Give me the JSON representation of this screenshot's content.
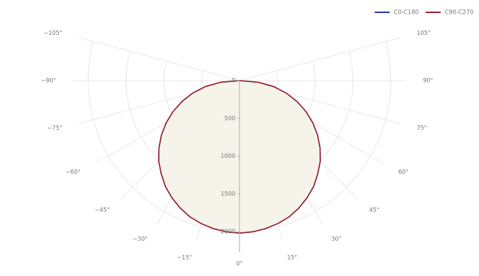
{
  "chart_data": {
    "type": "polar",
    "x": [
      -90,
      -85,
      -80,
      -75,
      -70,
      -65,
      -60,
      -55,
      -50,
      -45,
      -40,
      -35,
      -30,
      -25,
      -20,
      -15,
      -10,
      -5,
      0,
      5,
      10,
      15,
      20,
      25,
      30,
      35,
      40,
      45,
      50,
      55,
      60,
      65,
      70,
      75,
      80,
      85,
      90
    ],
    "series": [
      {
        "name": "C0-C180",
        "color": "#1f2f9e",
        "values": [
          0,
          250,
          460,
          640,
          810,
          970,
          1120,
          1260,
          1390,
          1510,
          1610,
          1710,
          1790,
          1860,
          1920,
          1960,
          1990,
          2010,
          2020,
          2010,
          1990,
          1960,
          1920,
          1860,
          1790,
          1710,
          1610,
          1510,
          1390,
          1260,
          1120,
          970,
          810,
          640,
          460,
          250,
          0
        ]
      },
      {
        "name": "C90-C270",
        "color": "#9b1b22",
        "values": [
          0,
          250,
          460,
          640,
          810,
          970,
          1120,
          1260,
          1390,
          1510,
          1610,
          1710,
          1790,
          1860,
          1920,
          1960,
          1990,
          2010,
          2020,
          2010,
          1990,
          1960,
          1920,
          1860,
          1790,
          1710,
          1610,
          1510,
          1390,
          1260,
          1120,
          970,
          810,
          640,
          460,
          250,
          0
        ]
      }
    ],
    "fill": "#f5f3ea",
    "rlim": [
      0,
      2000
    ],
    "rticks": [
      0,
      500,
      1000,
      1500,
      2000
    ],
    "angleticks": [
      {
        "value": -105,
        "label": "−105°"
      },
      {
        "value": -90,
        "label": "−90°"
      },
      {
        "value": -75,
        "label": "−75°"
      },
      {
        "value": -60,
        "label": "−60°"
      },
      {
        "value": -45,
        "label": "−45°"
      },
      {
        "value": -30,
        "label": "−30°"
      },
      {
        "value": -15,
        "label": "−15°"
      },
      {
        "value": 0,
        "label": "0°"
      },
      {
        "value": 15,
        "label": "15°"
      },
      {
        "value": 30,
        "label": "30°"
      },
      {
        "value": 45,
        "label": "45°"
      },
      {
        "value": 60,
        "label": "60°"
      },
      {
        "value": 75,
        "label": "75°"
      },
      {
        "value": 90,
        "label": "90°"
      },
      {
        "value": 105,
        "label": "105°"
      }
    ],
    "legend": "top-right"
  }
}
